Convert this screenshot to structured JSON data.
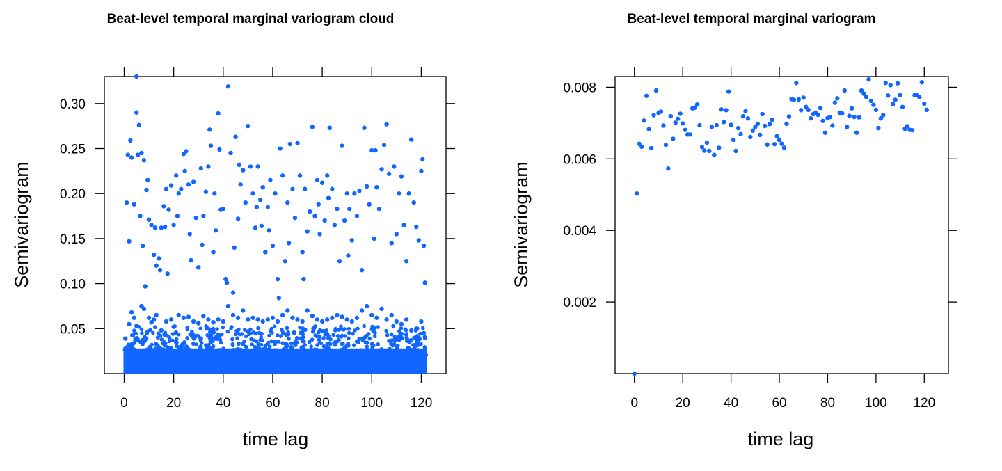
{
  "chart_data": [
    {
      "type": "scatter",
      "title": "Beat-level temporal marginal variogram cloud",
      "xlabel": "time lag",
      "ylabel": "Semivariogram",
      "xlim": [
        -8,
        130
      ],
      "ylim": [
        0,
        0.33
      ],
      "xticks": [
        0,
        20,
        40,
        60,
        80,
        100,
        120
      ],
      "yticks": [
        0.05,
        0.1,
        0.15,
        0.2,
        0.25,
        0.3
      ],
      "xtick_labels": [
        "0",
        "20",
        "40",
        "60",
        "80",
        "100",
        "120"
      ],
      "ytick_labels": [
        "0.05",
        "0.10",
        "0.15",
        "0.20",
        "0.25",
        "0.30"
      ],
      "color": "#1166ff",
      "dense_band": {
        "x": [
          0,
          122
        ],
        "y": [
          0,
          0.055
        ],
        "note_points": "very dense cloud of points near zero"
      },
      "points": [
        [
          1,
          0.19
        ],
        [
          1.5,
          0.243
        ],
        [
          2,
          0.147
        ],
        [
          2.5,
          0.259
        ],
        [
          3,
          0.24
        ],
        [
          4,
          0.188
        ],
        [
          5,
          0.33
        ],
        [
          5,
          0.29
        ],
        [
          5.5,
          0.243
        ],
        [
          6,
          0.276
        ],
        [
          6.5,
          0.175
        ],
        [
          7,
          0.245
        ],
        [
          7.5,
          0.142
        ],
        [
          8,
          0.237
        ],
        [
          8.5,
          0.097
        ],
        [
          9,
          0.204
        ],
        [
          9.5,
          0.215
        ],
        [
          10,
          0.171
        ],
        [
          11,
          0.165
        ],
        [
          12,
          0.132
        ],
        [
          12.5,
          0.162
        ],
        [
          13,
          0.12
        ],
        [
          14,
          0.128
        ],
        [
          14.5,
          0.115
        ],
        [
          15,
          0.162
        ],
        [
          16,
          0.186
        ],
        [
          16.5,
          0.163
        ],
        [
          17,
          0.205
        ],
        [
          17.5,
          0.111
        ],
        [
          18,
          0.182
        ],
        [
          19,
          0.209
        ],
        [
          20,
          0.165
        ],
        [
          21,
          0.22
        ],
        [
          21.5,
          0.175
        ],
        [
          22,
          0.2
        ],
        [
          23,
          0.205
        ],
        [
          24,
          0.244
        ],
        [
          24.5,
          0.225
        ],
        [
          25,
          0.247
        ],
        [
          26,
          0.21
        ],
        [
          26.5,
          0.155
        ],
        [
          27,
          0.126
        ],
        [
          28,
          0.213
        ],
        [
          29,
          0.173
        ],
        [
          30,
          0.118
        ],
        [
          31,
          0.228
        ],
        [
          31.5,
          0.143
        ],
        [
          32,
          0.175
        ],
        [
          33,
          0.202
        ],
        [
          34,
          0.23
        ],
        [
          34.5,
          0.271
        ],
        [
          35,
          0.253
        ],
        [
          36,
          0.135
        ],
        [
          36.5,
          0.2
        ],
        [
          37,
          0.159
        ],
        [
          38,
          0.289
        ],
        [
          38.5,
          0.249
        ],
        [
          39,
          0.182
        ],
        [
          40,
          0.183
        ],
        [
          41,
          0.105
        ],
        [
          41.5,
          0.101
        ],
        [
          42,
          0.319
        ],
        [
          43,
          0.245
        ],
        [
          44,
          0.09
        ],
        [
          44.5,
          0.14
        ],
        [
          45,
          0.263
        ],
        [
          46,
          0.172
        ],
        [
          46.5,
          0.232
        ],
        [
          47,
          0.21
        ],
        [
          48,
          0.226
        ],
        [
          49,
          0.19
        ],
        [
          50,
          0.275
        ],
        [
          51,
          0.23
        ],
        [
          52,
          0.2
        ],
        [
          53,
          0.162
        ],
        [
          53.5,
          0.185
        ],
        [
          54,
          0.23
        ],
        [
          55,
          0.193
        ],
        [
          55.5,
          0.164
        ],
        [
          56,
          0.207
        ],
        [
          57,
          0.135
        ],
        [
          58,
          0.185
        ],
        [
          58.5,
          0.159
        ],
        [
          59,
          0.215
        ],
        [
          60,
          0.142
        ],
        [
          61,
          0.2
        ],
        [
          62,
          0.105
        ],
        [
          62.5,
          0.084
        ],
        [
          63,
          0.25
        ],
        [
          64,
          0.22
        ],
        [
          65,
          0.125
        ],
        [
          66,
          0.19
        ],
        [
          66.5,
          0.145
        ],
        [
          67,
          0.255
        ],
        [
          68,
          0.205
        ],
        [
          69,
          0.173
        ],
        [
          70,
          0.256
        ],
        [
          71,
          0.22
        ],
        [
          72,
          0.135
        ],
        [
          72.5,
          0.105
        ],
        [
          73,
          0.205
        ],
        [
          74,
          0.158
        ],
        [
          75,
          0.18
        ],
        [
          76,
          0.274
        ],
        [
          77,
          0.175
        ],
        [
          78,
          0.215
        ],
        [
          78.5,
          0.188
        ],
        [
          79,
          0.155
        ],
        [
          80,
          0.212
        ],
        [
          81,
          0.17
        ],
        [
          82,
          0.22
        ],
        [
          82.5,
          0.195
        ],
        [
          83,
          0.273
        ],
        [
          84,
          0.205
        ],
        [
          85,
          0.165
        ],
        [
          86,
          0.183
        ],
        [
          87,
          0.125
        ],
        [
          88,
          0.253
        ],
        [
          89,
          0.17
        ],
        [
          90,
          0.2
        ],
        [
          90.5,
          0.131
        ],
        [
          91,
          0.183
        ],
        [
          92,
          0.148
        ],
        [
          93,
          0.2
        ],
        [
          94,
          0.175
        ],
        [
          95,
          0.203
        ],
        [
          96,
          0.115
        ],
        [
          97,
          0.273
        ],
        [
          98,
          0.208
        ],
        [
          99,
          0.188
        ],
        [
          100,
          0.248
        ],
        [
          101,
          0.15
        ],
        [
          101.5,
          0.248
        ],
        [
          102,
          0.207
        ],
        [
          103,
          0.183
        ],
        [
          104,
          0.227
        ],
        [
          105,
          0.254
        ],
        [
          106,
          0.277
        ],
        [
          107,
          0.222
        ],
        [
          108,
          0.145
        ],
        [
          109,
          0.23
        ],
        [
          110,
          0.155
        ],
        [
          111,
          0.2
        ],
        [
          112,
          0.219
        ],
        [
          113,
          0.165
        ],
        [
          114,
          0.125
        ],
        [
          115,
          0.2
        ],
        [
          116,
          0.26
        ],
        [
          117,
          0.19
        ],
        [
          118,
          0.163
        ],
        [
          119,
          0.148
        ],
        [
          120,
          0.225
        ],
        [
          120.5,
          0.238
        ],
        [
          121,
          0.142
        ],
        [
          121.5,
          0.101
        ],
        [
          0.5,
          0.039
        ],
        [
          2,
          0.055
        ],
        [
          3,
          0.068
        ],
        [
          4,
          0.062
        ],
        [
          5,
          0.053
        ],
        [
          7,
          0.075
        ],
        [
          8,
          0.072
        ],
        [
          10,
          0.062
        ],
        [
          11,
          0.057
        ],
        [
          12,
          0.06
        ],
        [
          13,
          0.065
        ],
        [
          15,
          0.048
        ],
        [
          17,
          0.058
        ],
        [
          19,
          0.06
        ],
        [
          20,
          0.052
        ],
        [
          22,
          0.065
        ],
        [
          24,
          0.062
        ],
        [
          26,
          0.063
        ],
        [
          28,
          0.058
        ],
        [
          30,
          0.056
        ],
        [
          32,
          0.064
        ],
        [
          34,
          0.06
        ],
        [
          36,
          0.057
        ],
        [
          38,
          0.06
        ],
        [
          40,
          0.058
        ],
        [
          42,
          0.075
        ],
        [
          44,
          0.065
        ],
        [
          46,
          0.062
        ],
        [
          48,
          0.07
        ],
        [
          50,
          0.06
        ],
        [
          52,
          0.062
        ],
        [
          54,
          0.06
        ],
        [
          56,
          0.058
        ],
        [
          58,
          0.06
        ],
        [
          60,
          0.062
        ],
        [
          62,
          0.058
        ],
        [
          64,
          0.065
        ],
        [
          66,
          0.07
        ],
        [
          68,
          0.062
        ],
        [
          70,
          0.06
        ],
        [
          72,
          0.058
        ],
        [
          74,
          0.07
        ],
        [
          76,
          0.064
        ],
        [
          78,
          0.06
        ],
        [
          80,
          0.058
        ],
        [
          82,
          0.06
        ],
        [
          84,
          0.062
        ],
        [
          86,
          0.065
        ],
        [
          88,
          0.063
        ],
        [
          90,
          0.06
        ],
        [
          92,
          0.058
        ],
        [
          94,
          0.062
        ],
        [
          96,
          0.07
        ],
        [
          98,
          0.075
        ],
        [
          100,
          0.065
        ],
        [
          102,
          0.062
        ],
        [
          104,
          0.072
        ],
        [
          106,
          0.06
        ],
        [
          108,
          0.065
        ],
        [
          110,
          0.058
        ],
        [
          112,
          0.055
        ],
        [
          114,
          0.06
        ],
        [
          116,
          0.048
        ],
        [
          118,
          0.05
        ],
        [
          120,
          0.058
        ],
        [
          121,
          0.045
        ]
      ]
    },
    {
      "type": "scatter",
      "title": "Beat-level temporal marginal variogram",
      "xlabel": "time lag",
      "ylabel": "Semivariogram",
      "xlim": [
        -8,
        130
      ],
      "ylim": [
        0,
        0.0083
      ],
      "xticks": [
        0,
        20,
        40,
        60,
        80,
        100,
        120
      ],
      "yticks": [
        0.002,
        0.004,
        0.006,
        0.008
      ],
      "xtick_labels": [
        "0",
        "20",
        "40",
        "60",
        "80",
        "100",
        "120"
      ],
      "ytick_labels": [
        "0.002",
        "0.004",
        "0.006",
        "0.008"
      ],
      "color": "#1166ff",
      "points": [
        [
          0,
          0.0
        ],
        [
          1,
          0.00503
        ],
        [
          2,
          0.00642
        ],
        [
          3,
          0.00634
        ],
        [
          4,
          0.00707
        ],
        [
          5,
          0.00776
        ],
        [
          6,
          0.00683
        ],
        [
          7,
          0.0063
        ],
        [
          8,
          0.00722
        ],
        [
          9,
          0.00791
        ],
        [
          10,
          0.00728
        ],
        [
          11,
          0.00732
        ],
        [
          12,
          0.00693
        ],
        [
          13,
          0.00639
        ],
        [
          14,
          0.00573
        ],
        [
          15,
          0.00719
        ],
        [
          16,
          0.00656
        ],
        [
          17,
          0.00701
        ],
        [
          18,
          0.00712
        ],
        [
          19,
          0.00726
        ],
        [
          20,
          0.00699
        ],
        [
          21,
          0.00681
        ],
        [
          22,
          0.00668
        ],
        [
          23,
          0.00668
        ],
        [
          24,
          0.00741
        ],
        [
          25,
          0.00743
        ],
        [
          26,
          0.00752
        ],
        [
          27,
          0.00694
        ],
        [
          28,
          0.00633
        ],
        [
          29,
          0.00623
        ],
        [
          30,
          0.00645
        ],
        [
          31,
          0.00622
        ],
        [
          32,
          0.00689
        ],
        [
          33,
          0.00611
        ],
        [
          34,
          0.00694
        ],
        [
          35,
          0.00631
        ],
        [
          36,
          0.00738
        ],
        [
          37,
          0.00703
        ],
        [
          38,
          0.00736
        ],
        [
          39,
          0.00788
        ],
        [
          40,
          0.00695
        ],
        [
          41,
          0.00653
        ],
        [
          42,
          0.00622
        ],
        [
          43,
          0.00686
        ],
        [
          44,
          0.00669
        ],
        [
          45,
          0.00719
        ],
        [
          46,
          0.00733
        ],
        [
          47,
          0.00713
        ],
        [
          48,
          0.00661
        ],
        [
          49,
          0.00679
        ],
        [
          50,
          0.00689
        ],
        [
          51,
          0.00698
        ],
        [
          52,
          0.00667
        ],
        [
          53,
          0.00725
        ],
        [
          54,
          0.00692
        ],
        [
          55,
          0.0064
        ],
        [
          56,
          0.00697
        ],
        [
          57,
          0.00709
        ],
        [
          58,
          0.00641
        ],
        [
          59,
          0.00663
        ],
        [
          60,
          0.00653
        ],
        [
          61,
          0.00642
        ],
        [
          62,
          0.00631
        ],
        [
          63,
          0.00698
        ],
        [
          64,
          0.00718
        ],
        [
          65,
          0.00767
        ],
        [
          66,
          0.00765
        ],
        [
          67,
          0.00812
        ],
        [
          68,
          0.00766
        ],
        [
          69,
          0.00736
        ],
        [
          70,
          0.00771
        ],
        [
          71,
          0.00745
        ],
        [
          72,
          0.00737
        ],
        [
          73,
          0.00713
        ],
        [
          74,
          0.00725
        ],
        [
          75,
          0.00729
        ],
        [
          76,
          0.00723
        ],
        [
          77,
          0.00742
        ],
        [
          78,
          0.00706
        ],
        [
          79,
          0.00673
        ],
        [
          80,
          0.00714
        ],
        [
          81,
          0.00717
        ],
        [
          82,
          0.00693
        ],
        [
          83,
          0.00757
        ],
        [
          84,
          0.00769
        ],
        [
          85,
          0.00729
        ],
        [
          86,
          0.00727
        ],
        [
          87,
          0.00791
        ],
        [
          88,
          0.00689
        ],
        [
          89,
          0.0072
        ],
        [
          90,
          0.00741
        ],
        [
          91,
          0.00717
        ],
        [
          92,
          0.00673
        ],
        [
          93,
          0.00716
        ],
        [
          94,
          0.00791
        ],
        [
          95,
          0.00782
        ],
        [
          96,
          0.00773
        ],
        [
          97,
          0.00822
        ],
        [
          98,
          0.00762
        ],
        [
          99,
          0.00751
        ],
        [
          100,
          0.00737
        ],
        [
          101,
          0.00686
        ],
        [
          102,
          0.00713
        ],
        [
          103,
          0.00722
        ],
        [
          104,
          0.00812
        ],
        [
          105,
          0.00777
        ],
        [
          106,
          0.00806
        ],
        [
          107,
          0.00753
        ],
        [
          108,
          0.00765
        ],
        [
          109,
          0.00811
        ],
        [
          110,
          0.00778
        ],
        [
          111,
          0.00745
        ],
        [
          112,
          0.00684
        ],
        [
          113,
          0.00691
        ],
        [
          114,
          0.00681
        ],
        [
          115,
          0.0068
        ],
        [
          116,
          0.00778
        ],
        [
          117,
          0.00779
        ],
        [
          118,
          0.00772
        ],
        [
          119,
          0.00814
        ],
        [
          120,
          0.00754
        ],
        [
          121,
          0.00737
        ]
      ]
    }
  ]
}
